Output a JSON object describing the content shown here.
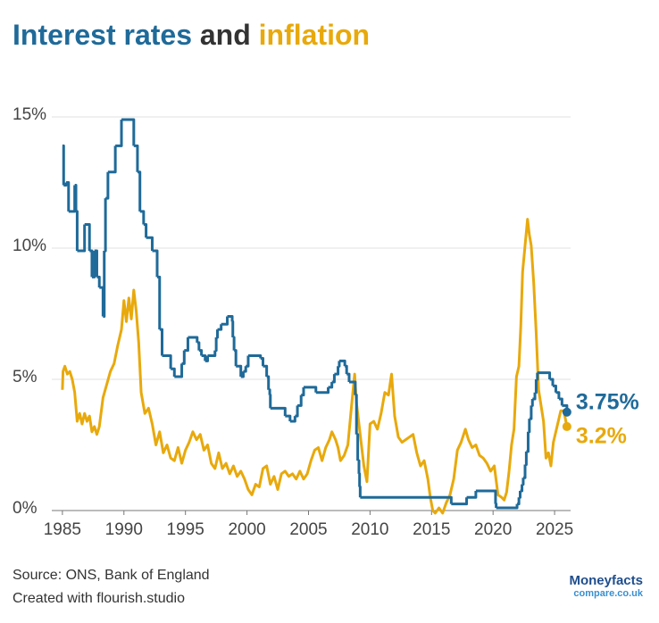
{
  "chart_data": {
    "type": "line",
    "title_joiner": "and",
    "series": [
      {
        "name": "Interest rates",
        "color": "#1f6a99",
        "step": true,
        "end_label": "3.75%",
        "x": [
          1985.0,
          1985.1,
          1985.3,
          1985.5,
          1986.0,
          1986.1,
          1986.2,
          1986.8,
          1987.2,
          1987.4,
          1987.6,
          1987.8,
          1988.0,
          1988.3,
          1988.4,
          1988.5,
          1988.7,
          1989.3,
          1989.8,
          1990.8,
          1991.1,
          1991.3,
          1991.6,
          1991.8,
          1992.3,
          1992.7,
          1992.9,
          1993.1,
          1993.8,
          1994.1,
          1994.7,
          1994.9,
          1995.2,
          1995.95,
          1996.1,
          1996.3,
          1996.6,
          1996.8,
          1997.4,
          1997.5,
          1997.6,
          1997.9,
          1998.4,
          1998.8,
          1998.85,
          1998.95,
          1999.1,
          1999.5,
          1999.7,
          1999.9,
          2000.1,
          2001.1,
          2001.3,
          2001.6,
          2001.75,
          2001.85,
          2001.9,
          2003.1,
          2003.5,
          2003.9,
          2004.1,
          2004.4,
          2004.6,
          2005.6,
          2006.6,
          2006.9,
          2007.1,
          2007.4,
          2007.5,
          2007.95,
          2008.1,
          2008.3,
          2008.8,
          2008.9,
          2009.0,
          2009.1,
          2009.15,
          2009.2,
          2016.6,
          2017.85,
          2018.6,
          2020.2,
          2020.25,
          2021.95,
          2022.1,
          2022.2,
          2022.35,
          2022.45,
          2022.6,
          2022.7,
          2022.85,
          2022.95,
          2023.1,
          2023.2,
          2023.4,
          2023.5,
          2023.6,
          2024.6,
          2024.85,
          2025.1,
          2025.35,
          2025.6,
          2026.0
        ],
        "values": [
          13.9,
          12.4,
          12.5,
          11.4,
          12.4,
          11.4,
          9.9,
          10.9,
          9.9,
          8.9,
          9.9,
          8.9,
          8.5,
          7.4,
          9.9,
          11.9,
          12.9,
          13.9,
          14.9,
          13.9,
          12.9,
          11.4,
          10.9,
          10.4,
          9.9,
          8.9,
          6.9,
          5.9,
          5.4,
          5.1,
          5.6,
          6.1,
          6.6,
          6.4,
          6.1,
          5.9,
          5.7,
          5.9,
          6.1,
          6.6,
          6.9,
          7.1,
          7.4,
          7.2,
          6.6,
          6.1,
          5.5,
          5.1,
          5.3,
          5.5,
          5.9,
          5.8,
          5.5,
          5.1,
          4.6,
          4.4,
          3.9,
          3.6,
          3.4,
          3.6,
          4.0,
          4.4,
          4.7,
          4.5,
          4.7,
          4.9,
          5.2,
          5.5,
          5.7,
          5.5,
          5.2,
          4.9,
          4.4,
          2.9,
          1.9,
          1.4,
          0.9,
          0.5,
          0.25,
          0.5,
          0.75,
          0.25,
          0.1,
          0.25,
          0.5,
          0.75,
          1,
          1.25,
          1.75,
          2.25,
          3,
          3.5,
          4,
          4.25,
          4.5,
          5,
          5.25,
          5,
          4.75,
          4.5,
          4.25,
          4,
          3.75
        ]
      },
      {
        "name": "inflation",
        "color": "#e8a90c",
        "end_label": "3.2%",
        "x": [
          1985.0,
          1985.05,
          1985.2,
          1985.4,
          1985.6,
          1985.8,
          1986.0,
          1986.2,
          1986.4,
          1986.6,
          1986.8,
          1987.0,
          1987.2,
          1987.4,
          1987.6,
          1987.8,
          1988.0,
          1988.3,
          1988.6,
          1988.9,
          1989.2,
          1989.5,
          1989.8,
          1990.0,
          1990.2,
          1990.4,
          1990.6,
          1990.8,
          1991.0,
          1991.2,
          1991.4,
          1991.7,
          1992.0,
          1992.3,
          1992.6,
          1992.9,
          1993.2,
          1993.5,
          1993.8,
          1994.1,
          1994.4,
          1994.7,
          1995.0,
          1995.3,
          1995.6,
          1995.9,
          1996.2,
          1996.5,
          1996.8,
          1997.1,
          1997.4,
          1997.7,
          1998.0,
          1998.3,
          1998.6,
          1998.9,
          1999.2,
          1999.5,
          1999.8,
          2000.1,
          2000.4,
          2000.7,
          2001.0,
          2001.3,
          2001.6,
          2001.9,
          2002.2,
          2002.5,
          2002.8,
          2003.1,
          2003.4,
          2003.7,
          2004.0,
          2004.3,
          2004.6,
          2004.9,
          2005.2,
          2005.5,
          2005.8,
          2006.1,
          2006.4,
          2006.7,
          2006.9,
          2007.2,
          2007.4,
          2007.6,
          2007.9,
          2008.2,
          2008.5,
          2008.75,
          2008.9,
          2009.2,
          2009.5,
          2009.75,
          2010.0,
          2010.3,
          2010.6,
          2010.9,
          2011.2,
          2011.5,
          2011.75,
          2012.0,
          2012.3,
          2012.6,
          2012.9,
          2013.2,
          2013.5,
          2013.8,
          2014.1,
          2014.4,
          2014.7,
          2014.9,
          2015.1,
          2015.3,
          2015.6,
          2015.9,
          2016.2,
          2016.5,
          2016.8,
          2017.1,
          2017.4,
          2017.75,
          2018.0,
          2018.3,
          2018.6,
          2018.9,
          2019.2,
          2019.5,
          2019.8,
          2020.1,
          2020.4,
          2020.7,
          2020.9,
          2021.1,
          2021.3,
          2021.5,
          2021.7,
          2021.9,
          2022.1,
          2022.25,
          2022.4,
          2022.6,
          2022.8,
          2022.95,
          2023.1,
          2023.3,
          2023.5,
          2023.7,
          2023.9,
          2024.1,
          2024.3,
          2024.5,
          2024.7,
          2024.9,
          2025.1,
          2025.3,
          2025.5,
          2025.75,
          2026.0
        ],
        "values": [
          4.6,
          5.3,
          5.5,
          5.2,
          5.3,
          5.0,
          4.5,
          3.4,
          3.7,
          3.3,
          3.7,
          3.4,
          3.6,
          3.0,
          3.2,
          2.9,
          3.2,
          4.3,
          4.8,
          5.3,
          5.6,
          6.3,
          6.9,
          8.0,
          7.2,
          8.1,
          7.3,
          8.4,
          7.6,
          6.4,
          4.5,
          3.7,
          3.9,
          3.3,
          2.5,
          3.0,
          2.2,
          2.5,
          2.0,
          1.9,
          2.4,
          1.8,
          2.3,
          2.6,
          3.0,
          2.7,
          2.9,
          2.3,
          2.5,
          1.8,
          1.6,
          2.2,
          1.6,
          1.8,
          1.4,
          1.7,
          1.3,
          1.5,
          1.2,
          0.8,
          0.6,
          1.0,
          0.9,
          1.6,
          1.7,
          1.0,
          1.3,
          0.8,
          1.4,
          1.5,
          1.3,
          1.4,
          1.2,
          1.5,
          1.2,
          1.4,
          1.9,
          2.3,
          2.4,
          1.9,
          2.4,
          2.7,
          3.0,
          2.7,
          2.4,
          1.9,
          2.1,
          2.5,
          4.0,
          5.2,
          4.1,
          2.9,
          1.7,
          1.1,
          3.3,
          3.4,
          3.1,
          3.7,
          4.5,
          4.4,
          5.2,
          3.6,
          2.8,
          2.6,
          2.7,
          2.8,
          2.9,
          2.2,
          1.7,
          1.9,
          1.2,
          0.5,
          0.0,
          -0.1,
          0.1,
          -0.1,
          0.3,
          0.6,
          1.2,
          2.3,
          2.6,
          3.1,
          2.7,
          2.4,
          2.5,
          2.1,
          2.0,
          1.8,
          1.5,
          1.7,
          0.6,
          0.5,
          0.4,
          0.7,
          1.5,
          2.5,
          3.1,
          5.1,
          5.5,
          7.0,
          9.1,
          10.1,
          11.1,
          10.5,
          10.1,
          8.7,
          6.8,
          4.6,
          4.0,
          3.4,
          2.0,
          2.2,
          1.7,
          2.6,
          3.0,
          3.4,
          3.8,
          3.8,
          3.2
        ]
      }
    ],
    "xlim": [
      1984.5,
      2026.3
    ],
    "xticks": [
      1985,
      1990,
      1995,
      2000,
      2005,
      2010,
      2015,
      2020,
      2025
    ],
    "ylim": [
      0,
      15
    ],
    "yticks": [
      {
        "value": 0,
        "label": "0%"
      },
      {
        "value": 5,
        "label": "5%"
      },
      {
        "value": 10,
        "label": "10%"
      },
      {
        "value": 15,
        "label": "15%"
      }
    ],
    "grid": true,
    "source": "Source: ONS, Bank of England",
    "credit": "Created with flourish.studio",
    "logo": [
      "Moneyfacts",
      "compare.co.uk"
    ]
  }
}
